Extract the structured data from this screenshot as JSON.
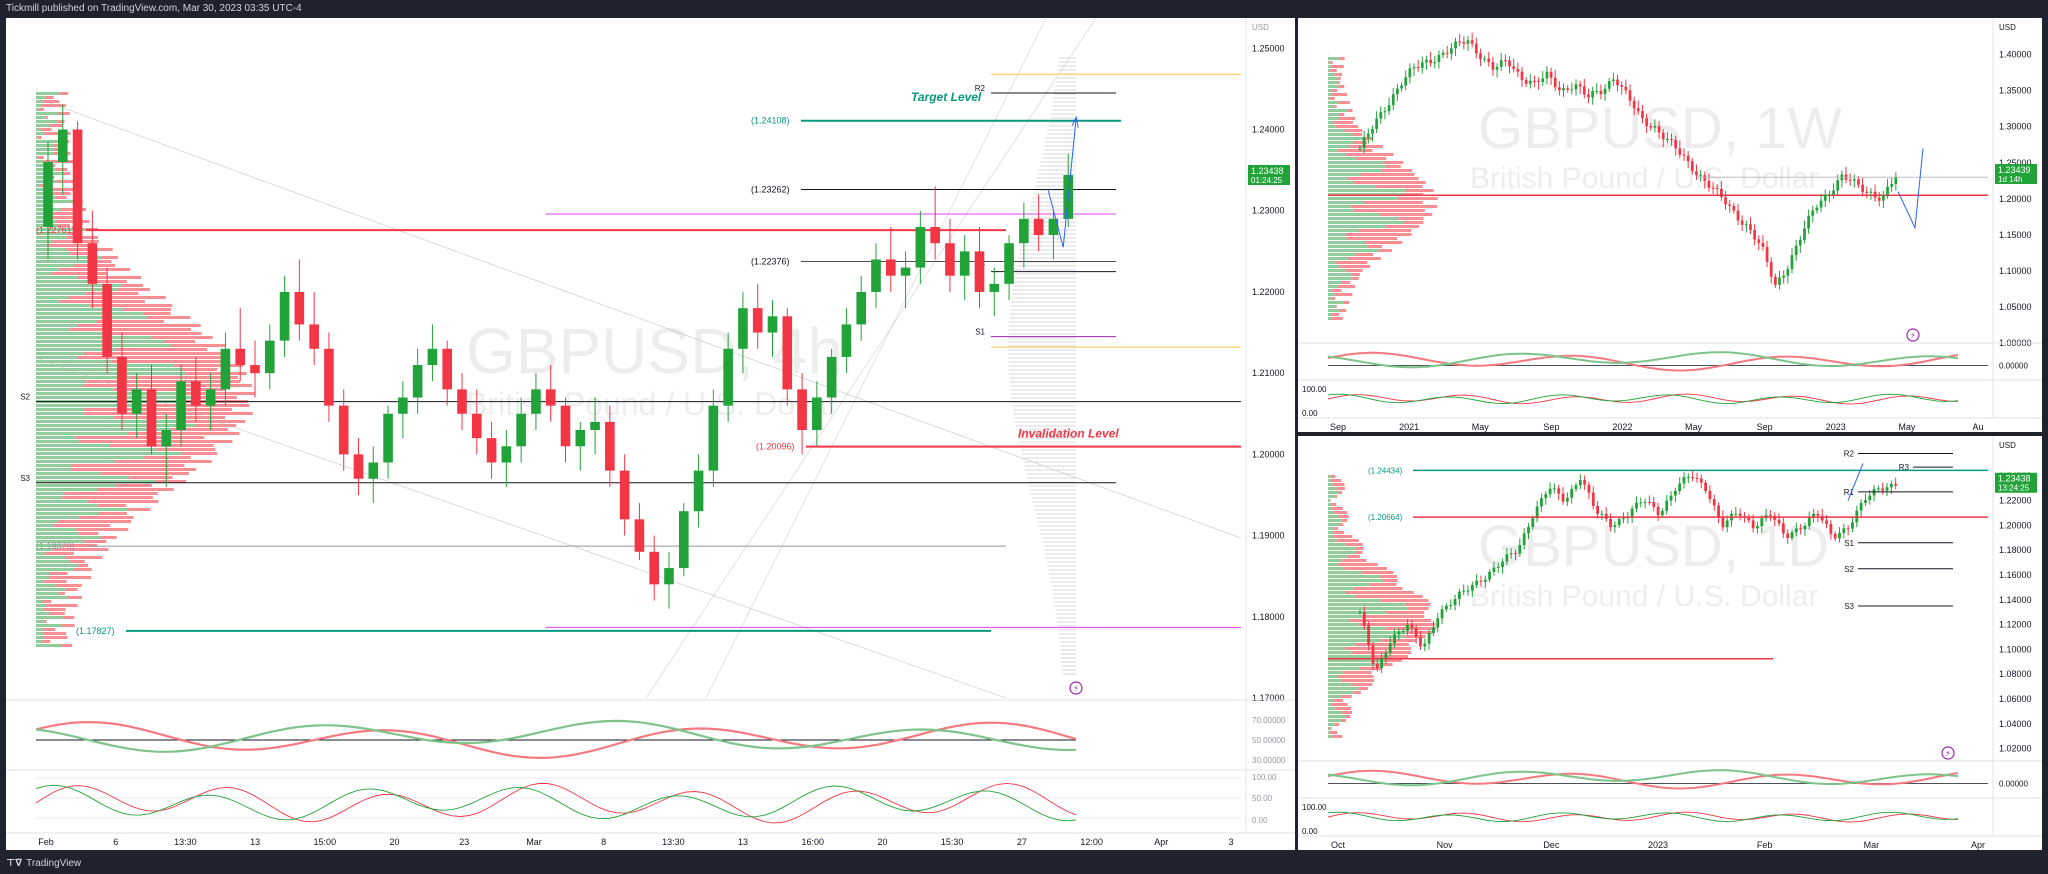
{
  "header": {
    "text": "Tickmill published on TradingView.com, Mar 30, 2023 03:35 UTC-4"
  },
  "footer": {
    "brand": "TradingView"
  },
  "colors": {
    "up": "#22a33a",
    "down": "#f23645",
    "profile_up": "#7ec48a",
    "profile_down": "#f47a80",
    "bg": "#1e222d"
  },
  "chart_data": [
    {
      "type": "candlestick",
      "panel": "main",
      "timeframe": "4h",
      "watermark": "GBPUSD, 4h",
      "watermark_sub": "British Pound / U.S. Dollar",
      "currency": "USD",
      "ylim": [
        1.17,
        1.2525
      ],
      "yticks": [
        1.25,
        1.24,
        1.23,
        1.22,
        1.21,
        1.2,
        1.19,
        1.18,
        1.17
      ],
      "xticks": [
        "Feb",
        "6",
        "13:30",
        "13",
        "15:00",
        "20",
        "23",
        "Mar",
        "8",
        "13:30",
        "13",
        "16:00",
        "20",
        "15:30",
        "27",
        "12:00",
        "Apr",
        "3"
      ],
      "price_label": "1.23438",
      "countdown": "01:24:25",
      "annotations": {
        "target": "Target Level",
        "invalidation": "Invalidation Level"
      },
      "levels": [
        {
          "name": "R2",
          "label": "",
          "value": 1.2445,
          "color": "#131722"
        },
        {
          "name": "target",
          "label": "(1.24108)",
          "value": 1.24108,
          "color": "#089981"
        },
        {
          "name": "R1",
          "label": "(1.23262)",
          "value": 1.23262,
          "color": "#131722"
        },
        {
          "name": "mid",
          "label": "(1.22376)",
          "value": 1.22376,
          "color": "#131722"
        },
        {
          "name": "red-high",
          "label": "(1.22761)",
          "value": 1.22761,
          "color": "#f23645"
        },
        {
          "name": "P",
          "label": "",
          "value": 1.2225,
          "color": "#131722"
        },
        {
          "name": "S1",
          "label": "",
          "value": 1.2145,
          "color": "#9c27b0"
        },
        {
          "name": "S2",
          "label": "",
          "value": 1.2065,
          "color": "#131722"
        },
        {
          "name": "invalidation",
          "label": "(1.20096)",
          "value": 1.20096,
          "color": "#f23645"
        },
        {
          "name": "S3",
          "label": "",
          "value": 1.1965,
          "color": "#131722"
        },
        {
          "name": "low-grey",
          "label": "(1.18870)",
          "value": 1.1887,
          "color": "#9598a1"
        },
        {
          "name": "low-green",
          "label": "(1.17827)",
          "value": 1.17827,
          "color": "#089981"
        }
      ],
      "ohlc": [
        [
          1.228,
          1.2385,
          1.224,
          1.236
        ],
        [
          1.236,
          1.243,
          1.232,
          1.24
        ],
        [
          1.24,
          1.241,
          1.224,
          1.226
        ],
        [
          1.226,
          1.23,
          1.218,
          1.221
        ],
        [
          1.221,
          1.223,
          1.21,
          1.212
        ],
        [
          1.212,
          1.215,
          1.203,
          1.205
        ],
        [
          1.205,
          1.21,
          1.202,
          1.208
        ],
        [
          1.208,
          1.211,
          1.2,
          1.201
        ],
        [
          1.201,
          1.205,
          1.196,
          1.203
        ],
        [
          1.203,
          1.211,
          1.201,
          1.209
        ],
        [
          1.209,
          1.212,
          1.204,
          1.206
        ],
        [
          1.206,
          1.21,
          1.203,
          1.208
        ],
        [
          1.208,
          1.215,
          1.206,
          1.213
        ],
        [
          1.213,
          1.218,
          1.209,
          1.211
        ],
        [
          1.211,
          1.214,
          1.207,
          1.21
        ],
        [
          1.21,
          1.216,
          1.208,
          1.214
        ],
        [
          1.214,
          1.222,
          1.212,
          1.22
        ],
        [
          1.22,
          1.224,
          1.214,
          1.216
        ],
        [
          1.216,
          1.22,
          1.211,
          1.213
        ],
        [
          1.213,
          1.215,
          1.204,
          1.206
        ],
        [
          1.206,
          1.208,
          1.198,
          1.2
        ],
        [
          1.2,
          1.202,
          1.195,
          1.197
        ],
        [
          1.197,
          1.201,
          1.194,
          1.199
        ],
        [
          1.199,
          1.206,
          1.197,
          1.205
        ],
        [
          1.205,
          1.209,
          1.202,
          1.207
        ],
        [
          1.207,
          1.213,
          1.205,
          1.211
        ],
        [
          1.211,
          1.216,
          1.209,
          1.213
        ],
        [
          1.213,
          1.214,
          1.206,
          1.208
        ],
        [
          1.208,
          1.21,
          1.203,
          1.205
        ],
        [
          1.205,
          1.208,
          1.2,
          1.202
        ],
        [
          1.202,
          1.204,
          1.197,
          1.199
        ],
        [
          1.199,
          1.203,
          1.196,
          1.201
        ],
        [
          1.201,
          1.207,
          1.199,
          1.205
        ],
        [
          1.205,
          1.21,
          1.203,
          1.208
        ],
        [
          1.208,
          1.211,
          1.204,
          1.206
        ],
        [
          1.206,
          1.207,
          1.199,
          1.201
        ],
        [
          1.201,
          1.204,
          1.198,
          1.203
        ],
        [
          1.203,
          1.207,
          1.2,
          1.204
        ],
        [
          1.204,
          1.206,
          1.196,
          1.198
        ],
        [
          1.198,
          1.2,
          1.19,
          1.192
        ],
        [
          1.192,
          1.194,
          1.187,
          1.188
        ],
        [
          1.188,
          1.19,
          1.182,
          1.184
        ],
        [
          1.184,
          1.188,
          1.181,
          1.186
        ],
        [
          1.186,
          1.194,
          1.185,
          1.193
        ],
        [
          1.193,
          1.2,
          1.191,
          1.198
        ],
        [
          1.198,
          1.208,
          1.196,
          1.206
        ],
        [
          1.206,
          1.215,
          1.204,
          1.213
        ],
        [
          1.213,
          1.22,
          1.21,
          1.218
        ],
        [
          1.218,
          1.221,
          1.213,
          1.215
        ],
        [
          1.215,
          1.219,
          1.212,
          1.217
        ],
        [
          1.217,
          1.218,
          1.206,
          1.208
        ],
        [
          1.208,
          1.21,
          1.2,
          1.203
        ],
        [
          1.203,
          1.209,
          1.201,
          1.207
        ],
        [
          1.207,
          1.213,
          1.205,
          1.212
        ],
        [
          1.212,
          1.218,
          1.21,
          1.216
        ],
        [
          1.216,
          1.222,
          1.214,
          1.22
        ],
        [
          1.22,
          1.226,
          1.218,
          1.224
        ],
        [
          1.224,
          1.228,
          1.22,
          1.222
        ],
        [
          1.222,
          1.225,
          1.218,
          1.223
        ],
        [
          1.223,
          1.23,
          1.221,
          1.228
        ],
        [
          1.228,
          1.233,
          1.224,
          1.226
        ],
        [
          1.226,
          1.229,
          1.22,
          1.222
        ],
        [
          1.222,
          1.227,
          1.219,
          1.225
        ],
        [
          1.225,
          1.228,
          1.218,
          1.22
        ],
        [
          1.22,
          1.223,
          1.217,
          1.221
        ],
        [
          1.221,
          1.227,
          1.219,
          1.226
        ],
        [
          1.226,
          1.231,
          1.223,
          1.229
        ],
        [
          1.229,
          1.232,
          1.225,
          1.227
        ],
        [
          1.227,
          1.23,
          1.224,
          1.229
        ],
        [
          1.229,
          1.237,
          1.228,
          1.2344
        ]
      ]
    },
    {
      "type": "candlestick",
      "panel": "weekly",
      "timeframe": "1W",
      "watermark": "GBPUSD, 1W",
      "watermark_sub": "British Pound / U.S. Dollar",
      "currency": "USD",
      "ylim": [
        1.0,
        1.43
      ],
      "yticks": [
        1.4,
        1.35,
        1.3,
        1.25,
        1.2,
        1.15,
        1.1,
        1.05,
        1.0
      ],
      "xticks": [
        "Sep",
        "2021",
        "May",
        "Sep",
        "2022",
        "May",
        "Sep",
        "2023",
        "May",
        "Au"
      ],
      "price_label": "1.23439",
      "countdown": "1d 14h",
      "close_path": [
        1.27,
        1.3,
        1.33,
        1.36,
        1.38,
        1.39,
        1.4,
        1.41,
        1.42,
        1.4,
        1.38,
        1.39,
        1.37,
        1.36,
        1.37,
        1.35,
        1.36,
        1.34,
        1.35,
        1.37,
        1.34,
        1.31,
        1.3,
        1.28,
        1.26,
        1.24,
        1.22,
        1.2,
        1.18,
        1.16,
        1.13,
        1.08,
        1.11,
        1.15,
        1.19,
        1.21,
        1.23,
        1.22,
        1.21,
        1.2,
        1.23
      ]
    },
    {
      "type": "candlestick",
      "panel": "daily",
      "timeframe": "1D",
      "watermark": "GBPUSD, 1D",
      "watermark_sub": "British Pound / U.S. Dollar",
      "currency": "USD",
      "ylim": [
        1.01,
        1.26
      ],
      "yticks": [
        1.24,
        1.22,
        1.2,
        1.18,
        1.16,
        1.14,
        1.12,
        1.1,
        1.08,
        1.06,
        1.04,
        1.02
      ],
      "xticks": [
        "Oct",
        "Nov",
        "Dec",
        "2023",
        "Feb",
        "Mar",
        "Apr"
      ],
      "price_label": "1.23438",
      "countdown": "13:24:25",
      "levels_text": [
        "(1.24434)",
        "(1.20664)",
        "R3",
        "R2",
        "R1",
        "S1",
        "S2",
        "S3"
      ],
      "close_path": [
        1.13,
        1.08,
        1.11,
        1.12,
        1.1,
        1.13,
        1.14,
        1.15,
        1.16,
        1.17,
        1.18,
        1.21,
        1.23,
        1.22,
        1.24,
        1.21,
        1.2,
        1.21,
        1.22,
        1.21,
        1.23,
        1.24,
        1.23,
        1.2,
        1.21,
        1.2,
        1.21,
        1.19,
        1.2,
        1.21,
        1.19,
        1.2,
        1.22,
        1.23,
        1.234
      ]
    }
  ],
  "oscillator_ticks": {
    "main_rsi": [
      "70.00000",
      "50.00000",
      "30.00000"
    ],
    "stoch": [
      "100.00",
      "50.00",
      "0.00"
    ],
    "right_rsi": "0.00000",
    "right_stoch": [
      "100.00",
      "0.00"
    ]
  }
}
